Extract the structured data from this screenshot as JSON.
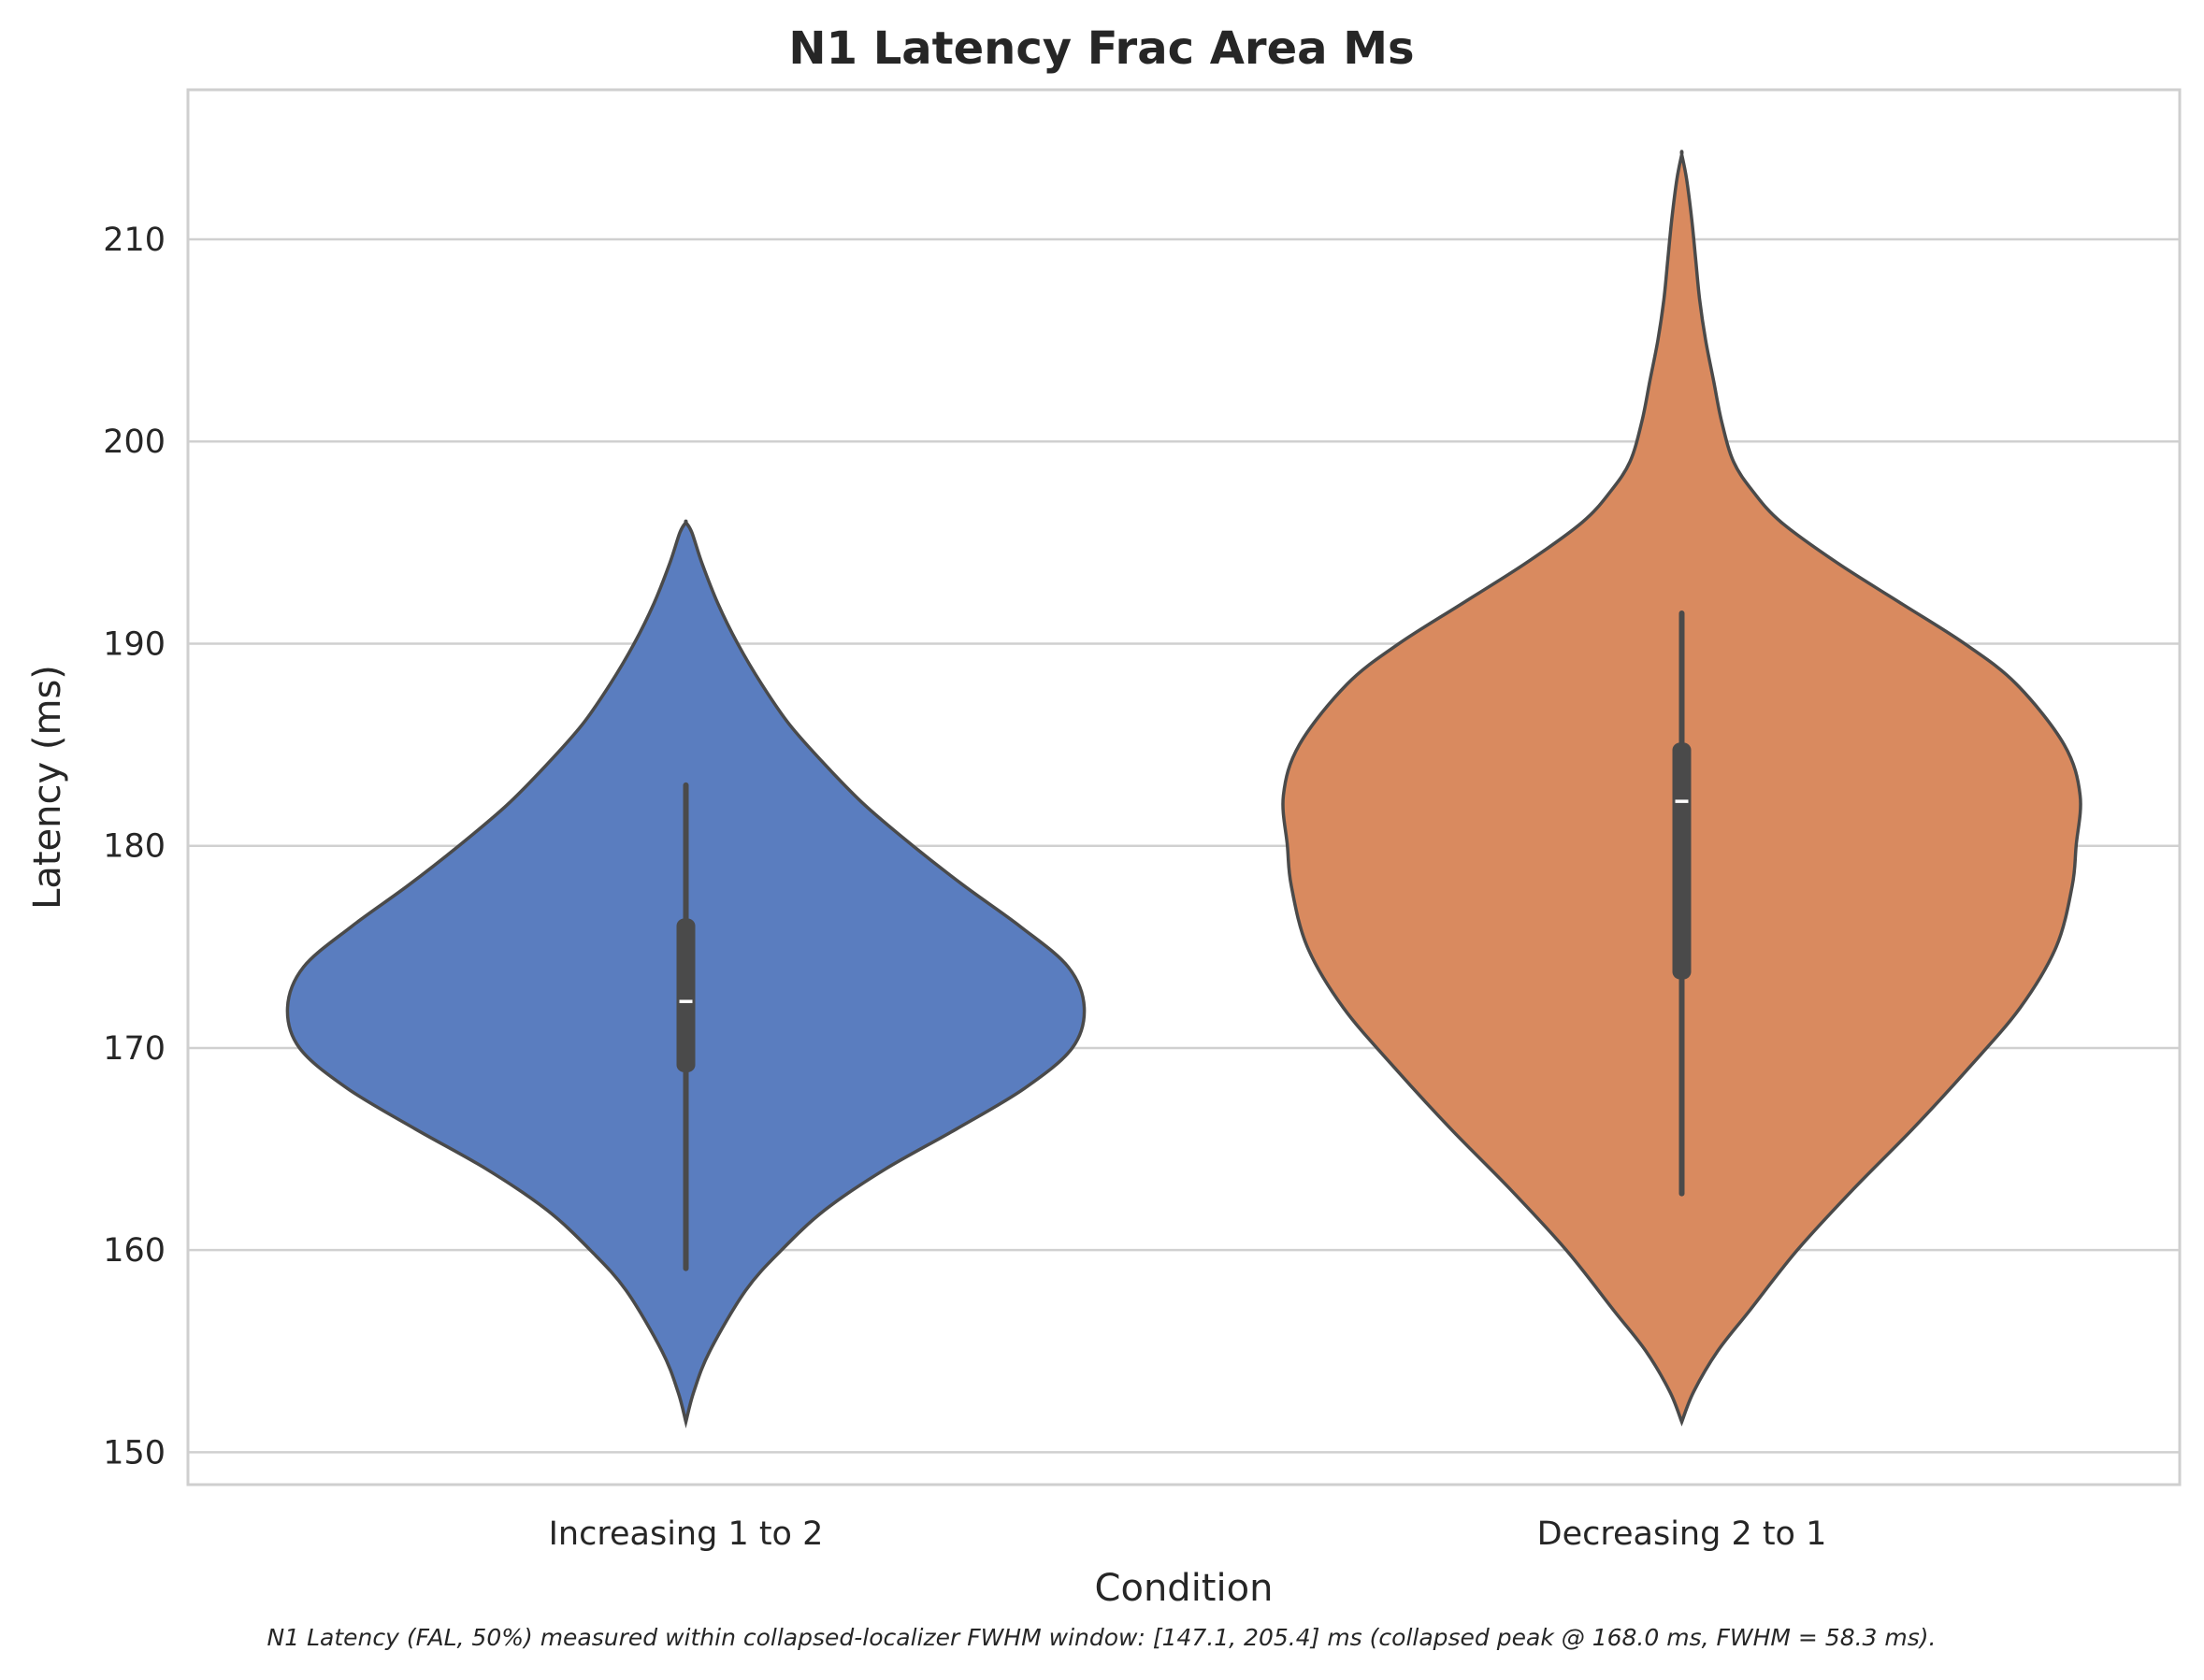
{
  "chart_data": {
    "type": "violin",
    "title": "N1 Latency Frac Area Ms",
    "xlabel": "Condition",
    "ylabel": "Latency (ms)",
    "ylim": [
      148.4,
      217.4
    ],
    "yticks": [
      150,
      160,
      170,
      180,
      190,
      200,
      210
    ],
    "grid": "horizontal",
    "categories": [
      "Increasing 1 to 2",
      "Decreasing 2 to 1"
    ],
    "series": [
      {
        "category": "Increasing 1 to 2",
        "color": "#5a7dbf",
        "range": [
          151.5,
          196.0
        ],
        "whisker": [
          159.1,
          183.0
        ],
        "q1": 168.8,
        "median": 172.3,
        "q3": 176.4,
        "density": [
          [
            151.5,
            0.0
          ],
          [
            153,
            0.02
          ],
          [
            155,
            0.06
          ],
          [
            158,
            0.15
          ],
          [
            160,
            0.24
          ],
          [
            162,
            0.35
          ],
          [
            164,
            0.5
          ],
          [
            166,
            0.68
          ],
          [
            168,
            0.85
          ],
          [
            170,
            0.97
          ],
          [
            172,
            1.0
          ],
          [
            174,
            0.96
          ],
          [
            176,
            0.84
          ],
          [
            178,
            0.7
          ],
          [
            180,
            0.57
          ],
          [
            182,
            0.45
          ],
          [
            184,
            0.35
          ],
          [
            186,
            0.26
          ],
          [
            188,
            0.19
          ],
          [
            190,
            0.13
          ],
          [
            192,
            0.08
          ],
          [
            194,
            0.04
          ],
          [
            195.5,
            0.015
          ],
          [
            196,
            0.0
          ]
        ]
      },
      {
        "category": "Decreasing 2 to 1",
        "color": "#d98a5f",
        "range": [
          151.5,
          214.2
        ],
        "whisker": [
          162.8,
          191.5
        ],
        "q1": 173.4,
        "median": 182.2,
        "q3": 185.1,
        "density": [
          [
            151.5,
            0.0
          ],
          [
            153,
            0.03
          ],
          [
            155,
            0.09
          ],
          [
            157,
            0.17
          ],
          [
            160,
            0.29
          ],
          [
            163,
            0.43
          ],
          [
            166,
            0.58
          ],
          [
            169,
            0.72
          ],
          [
            172,
            0.85
          ],
          [
            175,
            0.94
          ],
          [
            178,
            0.98
          ],
          [
            180,
            0.99
          ],
          [
            182.5,
            1.0
          ],
          [
            185,
            0.96
          ],
          [
            188,
            0.84
          ],
          [
            190,
            0.71
          ],
          [
            192,
            0.55
          ],
          [
            194,
            0.39
          ],
          [
            196,
            0.25
          ],
          [
            197.5,
            0.18
          ],
          [
            199,
            0.13
          ],
          [
            201,
            0.1
          ],
          [
            203,
            0.08
          ],
          [
            205,
            0.06
          ],
          [
            207,
            0.045
          ],
          [
            209,
            0.035
          ],
          [
            211,
            0.025
          ],
          [
            213,
            0.012
          ],
          [
            214.2,
            0.0
          ]
        ]
      }
    ],
    "caption": "N1 Latency (FAL, 50%) measured within collapsed-localizer FWHM window: [147.1, 205.4] ms (collapsed peak @ 168.0 ms, FWHM = 58.3 ms)."
  }
}
